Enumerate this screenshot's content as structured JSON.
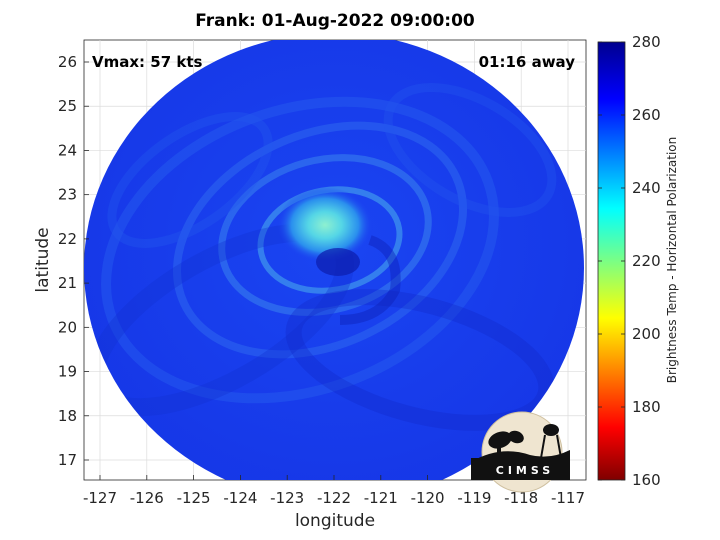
{
  "title": "Frank: 01-Aug-2022 09:00:00",
  "annotations": {
    "vmax": "Vmax: 57 kts",
    "time_offset": "01:16 away"
  },
  "axes": {
    "xlabel": "longitude",
    "ylabel": "latitude",
    "xticks": [
      "-127",
      "-126",
      "-125",
      "-124",
      "-123",
      "-122",
      "-121",
      "-120",
      "-119",
      "-118",
      "-117"
    ],
    "yticks": [
      "17",
      "18",
      "19",
      "20",
      "21",
      "22",
      "23",
      "24",
      "25",
      "26"
    ]
  },
  "colorbar": {
    "label": "Brightness Temp - Horizontal Polarization",
    "ticks": [
      "160",
      "180",
      "200",
      "220",
      "240",
      "260",
      "280"
    ],
    "colormap": [
      "#7f0000",
      "#ff0000",
      "#ffff00",
      "#00ffff",
      "#0000ff",
      "#00008f"
    ]
  },
  "storm": {
    "name": "Frank",
    "center_lon": -122.1,
    "center_lat": 22.1
  },
  "logo": {
    "text": "CIMSS"
  },
  "colors": {
    "background_blue": "#1a3cf0",
    "eye_cyan": "#6fe0e0",
    "cold_core": "#2ea0e8"
  }
}
